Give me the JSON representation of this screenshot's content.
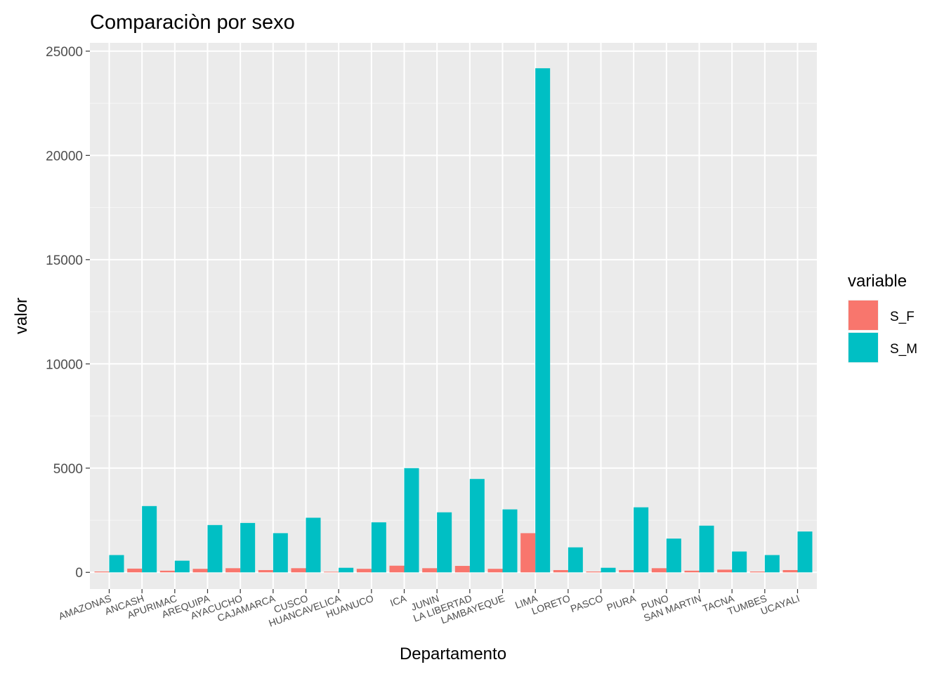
{
  "chart_data": {
    "type": "bar",
    "title": "Comparaciòn por sexo",
    "xlabel": "Departamento",
    "ylabel": "valor",
    "ylim": [
      -800,
      25400
    ],
    "yticks": [
      0,
      5000,
      10000,
      15000,
      20000,
      25000
    ],
    "ytick_labels": [
      "0",
      "5000",
      "10000",
      "15000",
      "20000",
      "25000"
    ],
    "categories": [
      "AMAZONAS",
      "ANCASH",
      "APURIMAC",
      "AREQUIPA",
      "AYACUCHO",
      "CAJAMARCA",
      "CUSCO",
      "HUANCAVELICA",
      "HUANUCO",
      "ICA",
      "JUNIN",
      "LA LIBERTAD",
      "LAMBAYEQUE",
      "LIMA",
      "LORETO",
      "PASCO",
      "PIURA",
      "PUNO",
      "SAN MARTIN",
      "TACNA",
      "TUMBES",
      "UCAYALI"
    ],
    "series": [
      {
        "name": "S_F",
        "color": "#F8766D",
        "values": [
          40,
          180,
          80,
          170,
          200,
          110,
          200,
          30,
          170,
          320,
          200,
          310,
          170,
          1880,
          110,
          40,
          110,
          200,
          80,
          130,
          40,
          110
        ]
      },
      {
        "name": "S_M",
        "color": "#00BFC4",
        "values": [
          830,
          3180,
          560,
          2270,
          2370,
          1880,
          2620,
          220,
          2400,
          5000,
          2880,
          4480,
          3020,
          24180,
          1200,
          220,
          3120,
          1620,
          2240,
          1000,
          830,
          1960
        ]
      }
    ],
    "legend": {
      "title": "variable",
      "position": "right"
    },
    "grid": true,
    "background": "#EBEBEB"
  }
}
